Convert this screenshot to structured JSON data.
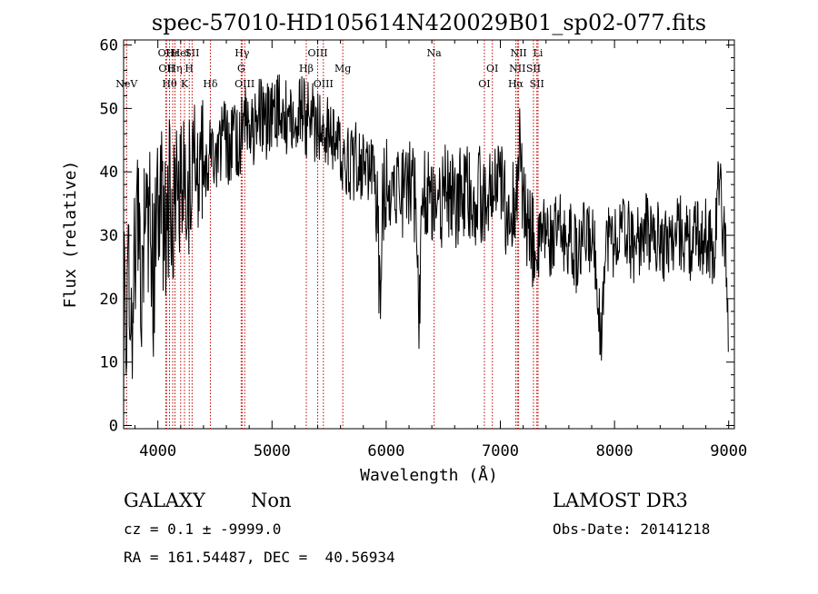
{
  "chart_data": {
    "type": "line",
    "title": "spec-57010-HD105614N420029B01_sp02-077.fits",
    "xlabel": "Wavelength (Å)",
    "ylabel": "Flux (relative)",
    "xlim": [
      3700,
      9050
    ],
    "ylim": [
      -0.5,
      60.8
    ],
    "x_ticks": [
      4000,
      5000,
      6000,
      7000,
      8000,
      9000
    ],
    "y_ticks": [
      0,
      10,
      20,
      30,
      40,
      50,
      60
    ],
    "x_tick_labels": [
      "4000",
      "5000",
      "6000",
      "7000",
      "8000",
      "9000"
    ],
    "y_tick_labels": [
      "0",
      "10",
      "20",
      "30",
      "40",
      "50",
      "60"
    ],
    "grid": false,
    "series": [
      {
        "name": "spectrum",
        "anchors": [
          [
            3700,
            0
          ],
          [
            3705,
            34
          ],
          [
            3720,
            10
          ],
          [
            3740,
            30
          ],
          [
            3760,
            22
          ],
          [
            3780,
            14
          ],
          [
            3800,
            28
          ],
          [
            3830,
            34
          ],
          [
            3860,
            20
          ],
          [
            3880,
            32
          ],
          [
            3900,
            28
          ],
          [
            3930,
            35
          ],
          [
            3960,
            22
          ],
          [
            3990,
            33
          ],
          [
            4020,
            38
          ],
          [
            4050,
            32
          ],
          [
            4080,
            30
          ],
          [
            4100,
            38
          ],
          [
            4140,
            34
          ],
          [
            4170,
            40
          ],
          [
            4200,
            36
          ],
          [
            4240,
            41
          ],
          [
            4270,
            38
          ],
          [
            4300,
            35
          ],
          [
            4340,
            42
          ],
          [
            4380,
            43
          ],
          [
            4420,
            40
          ],
          [
            4460,
            45
          ],
          [
            4500,
            42
          ],
          [
            4540,
            44
          ],
          [
            4580,
            46
          ],
          [
            4620,
            43
          ],
          [
            4660,
            45
          ],
          [
            4700,
            44
          ],
          [
            4740,
            47
          ],
          [
            4780,
            48
          ],
          [
            4820,
            46
          ],
          [
            4860,
            48
          ],
          [
            4900,
            50
          ],
          [
            4940,
            47
          ],
          [
            4980,
            49
          ],
          [
            5020,
            48
          ],
          [
            5060,
            50
          ],
          [
            5100,
            48
          ],
          [
            5140,
            49
          ],
          [
            5180,
            47
          ],
          [
            5220,
            49
          ],
          [
            5260,
            50
          ],
          [
            5300,
            48
          ],
          [
            5340,
            49
          ],
          [
            5380,
            47
          ],
          [
            5420,
            48
          ],
          [
            5460,
            46
          ],
          [
            5500,
            47
          ],
          [
            5540,
            45
          ],
          [
            5580,
            44
          ],
          [
            5620,
            43
          ],
          [
            5660,
            42
          ],
          [
            5700,
            41
          ],
          [
            5740,
            42
          ],
          [
            5780,
            41
          ],
          [
            5820,
            40
          ],
          [
            5860,
            41
          ],
          [
            5900,
            38
          ],
          [
            5925,
            34
          ],
          [
            5945,
            19
          ],
          [
            5965,
            34
          ],
          [
            6000,
            39
          ],
          [
            6040,
            38
          ],
          [
            6080,
            39
          ],
          [
            6120,
            38
          ],
          [
            6160,
            37
          ],
          [
            6200,
            38
          ],
          [
            6240,
            37
          ],
          [
            6270,
            33
          ],
          [
            6290,
            17
          ],
          [
            6310,
            35
          ],
          [
            6350,
            37
          ],
          [
            6400,
            36
          ],
          [
            6440,
            37
          ],
          [
            6480,
            35
          ],
          [
            6520,
            37
          ],
          [
            6560,
            36
          ],
          [
            6600,
            34
          ],
          [
            6640,
            36
          ],
          [
            6680,
            37
          ],
          [
            6720,
            36
          ],
          [
            6760,
            35
          ],
          [
            6800,
            37
          ],
          [
            6840,
            36
          ],
          [
            6880,
            34
          ],
          [
            6920,
            37
          ],
          [
            6960,
            36
          ],
          [
            7000,
            38
          ],
          [
            7040,
            35
          ],
          [
            7080,
            33
          ],
          [
            7120,
            35
          ],
          [
            7150,
            40
          ],
          [
            7170,
            44
          ],
          [
            7190,
            36
          ],
          [
            7220,
            33
          ],
          [
            7260,
            30
          ],
          [
            7300,
            28
          ],
          [
            7330,
            27
          ],
          [
            7360,
            30
          ],
          [
            7400,
            31
          ],
          [
            7440,
            29
          ],
          [
            7480,
            30
          ],
          [
            7520,
            31
          ],
          [
            7560,
            29
          ],
          [
            7600,
            30
          ],
          [
            7640,
            28
          ],
          [
            7680,
            26
          ],
          [
            7720,
            29
          ],
          [
            7760,
            30
          ],
          [
            7800,
            29
          ],
          [
            7840,
            27
          ],
          [
            7870,
            15
          ],
          [
            7890,
            14
          ],
          [
            7910,
            28
          ],
          [
            7950,
            30
          ],
          [
            8000,
            29
          ],
          [
            8040,
            30
          ],
          [
            8080,
            31
          ],
          [
            8120,
            30
          ],
          [
            8160,
            28
          ],
          [
            8200,
            30
          ],
          [
            8240,
            29
          ],
          [
            8280,
            31
          ],
          [
            8320,
            30
          ],
          [
            8360,
            29
          ],
          [
            8400,
            30
          ],
          [
            8440,
            28
          ],
          [
            8480,
            30
          ],
          [
            8520,
            29
          ],
          [
            8560,
            31
          ],
          [
            8600,
            30
          ],
          [
            8640,
            29
          ],
          [
            8680,
            28
          ],
          [
            8720,
            31
          ],
          [
            8760,
            29
          ],
          [
            8800,
            30
          ],
          [
            8840,
            29
          ],
          [
            8870,
            25
          ],
          [
            8900,
            38
          ],
          [
            8930,
            36
          ],
          [
            8960,
            30
          ],
          [
            8990,
            22
          ],
          [
            9000,
            6
          ]
        ],
        "sampling_step": 4.5,
        "noise_amplitude": 6.0,
        "noise_seed": 57010,
        "color": "#000000"
      }
    ],
    "line_markers": [
      {
        "name": "NeV",
        "wavelength": 3726,
        "row": 3
      },
      {
        "name": "OII",
        "wavelength": 4070,
        "row": 1
      },
      {
        "name": "OII",
        "wavelength": 4076,
        "row": 2
      },
      {
        "name": "Hθ",
        "wavelength": 4102,
        "row": 3
      },
      {
        "name": "Hε",
        "wavelength": 4130,
        "row": 1
      },
      {
        "name": "Hη",
        "wavelength": 4150,
        "row": 2
      },
      {
        "name": "HeI",
        "wavelength": 4200,
        "row": 1
      },
      {
        "name": "K",
        "wavelength": 4233,
        "row": 3
      },
      {
        "name": "H",
        "wavelength": 4275,
        "row": 2
      },
      {
        "name": "SII",
        "wavelength": 4300,
        "row": 1
      },
      {
        "name": "Hδ",
        "wavelength": 4460,
        "row": 3
      },
      {
        "name": "Hγ",
        "wavelength": 4738,
        "row": 1
      },
      {
        "name": "G",
        "wavelength": 4730,
        "row": 2
      },
      {
        "name": "OIII",
        "wavelength": 4760,
        "row": 3
      },
      {
        "name": "Hβ",
        "wavelength": 5300,
        "row": 2
      },
      {
        "name": "OIII",
        "wavelength": 5400,
        "row": 1
      },
      {
        "name": "OIII",
        "wavelength": 5450,
        "row": 3
      },
      {
        "name": "Mg",
        "wavelength": 5620,
        "row": 2
      },
      {
        "name": "Na",
        "wavelength": 6420,
        "row": 1
      },
      {
        "name": "OI",
        "wavelength": 6930,
        "row": 2
      },
      {
        "name": "OI",
        "wavelength": 6860,
        "row": 3
      },
      {
        "name": "NII",
        "wavelength": 7160,
        "row": 1
      },
      {
        "name": "NII",
        "wavelength": 7150,
        "row": 2
      },
      {
        "name": "Hα",
        "wavelength": 7135,
        "row": 3
      },
      {
        "name": "Li",
        "wavelength": 7330,
        "row": 1
      },
      {
        "name": "SII",
        "wavelength": 7290,
        "row": 2
      },
      {
        "name": "SII",
        "wavelength": 7320,
        "row": 3
      }
    ]
  },
  "info": {
    "object_type": "GALAXY",
    "subclass": "Non",
    "redshift_line": "cz = 0.1 ± -9999.0",
    "coords_line": "RA = 161.54487, DEC =  40.56934",
    "survey": "LAMOST DR3",
    "obs_date_line": "Obs-Date: 20141218"
  }
}
